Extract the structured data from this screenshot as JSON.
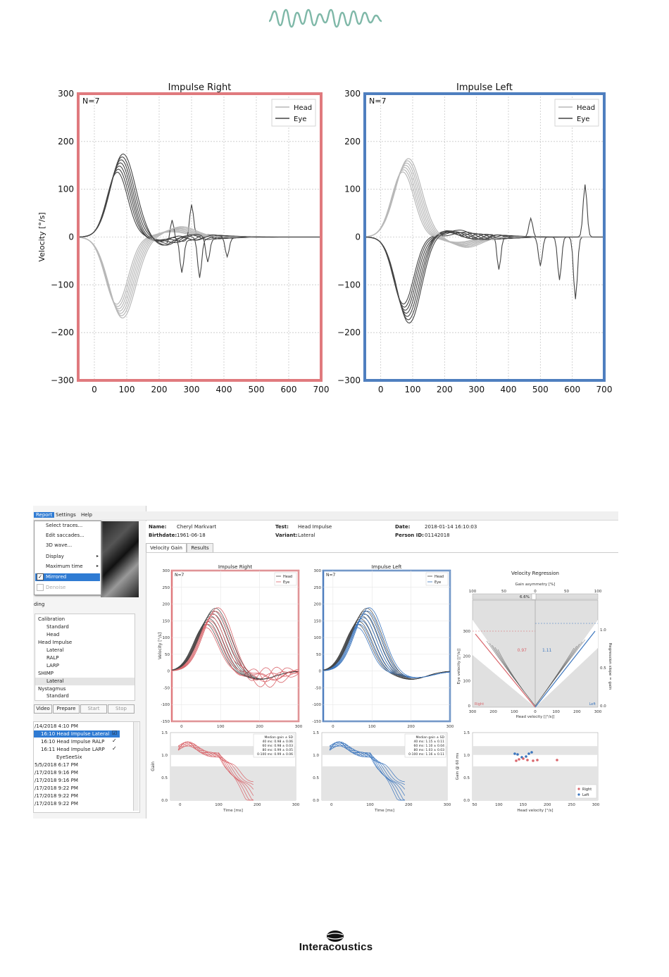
{
  "logo": {
    "icon": "sound-wave-logo",
    "color": "#7fb8a8"
  },
  "chart_data": [
    {
      "type": "line",
      "title": "Impulse Right",
      "annotation": "N=7",
      "ylabel": "Velocity [°/s]",
      "xlim": [
        -50,
        700
      ],
      "ylim": [
        -300,
        300
      ],
      "xticks": [
        0,
        100,
        200,
        300,
        400,
        500,
        600,
        700
      ],
      "yticks": [
        300,
        200,
        100,
        0,
        -100,
        -200,
        -300
      ],
      "ytick_labels": [
        "300",
        "200",
        "100",
        "0",
        "−100",
        "−200",
        "−300"
      ],
      "grid": true,
      "legend_position": "top-right",
      "series": [
        {
          "name": "Head",
          "color": "#b8b8b8"
        },
        {
          "name": "Eye",
          "color": "#444444"
        }
      ],
      "head_peak": -160,
      "eye_peak": 160,
      "frame_color": "#e07a7e"
    },
    {
      "type": "line",
      "title": "Impulse Left",
      "annotation": "N=7",
      "xlim": [
        -50,
        700
      ],
      "ylim": [
        -300,
        300
      ],
      "xticks": [
        0,
        100,
        200,
        300,
        400,
        500,
        600,
        700
      ],
      "yticks": [
        300,
        200,
        100,
        0,
        -100,
        -200,
        -300
      ],
      "ytick_labels": [
        "300",
        "200",
        "100",
        "0",
        "−100",
        "−200",
        "−300"
      ],
      "grid": true,
      "legend_position": "top-right",
      "series": [
        {
          "name": "Head",
          "color": "#b8b8b8"
        },
        {
          "name": "Eye",
          "color": "#444444"
        }
      ],
      "head_peak": 155,
      "eye_peak": -165,
      "frame_color": "#4f7fbf"
    }
  ],
  "screenshot": {
    "menu": {
      "report": "Report",
      "settings": "Settings",
      "help": "Help"
    },
    "dropdown": [
      "Select traces...",
      "Edit saccades...",
      "3D wave...",
      "Display",
      "Maximum time",
      "Mirrored",
      "Denoise"
    ],
    "section_label": "ding",
    "tree": [
      "Calibration",
      "Standard",
      "Head",
      "Head Impulse",
      "Lateral",
      "RALP",
      "LARP",
      "SHIMP",
      "Lateral",
      "Nystagmus",
      "Standard"
    ],
    "buttons": [
      "Video",
      "Prepare",
      "Start",
      "Stop"
    ],
    "sessions": [
      "/14/2018 4:10 PM",
      "16:10 Head Impulse Lateral",
      "16:10 Head Impulse RALP",
      "16:11 Head Impulse LARP",
      "EyeSeeSix",
      "5/5/2018 6:17 PM",
      "/17/2018 9:16 PM",
      "/17/2018 9:16 PM",
      "/17/2018 9:22 PM",
      "/17/2018 9:22 PM",
      "/17/2018 9:22 PM"
    ],
    "header": {
      "name_label": "Name:",
      "name": "Cheryl Markvart",
      "birth_label": "Birthdate:",
      "birth": "1961-06-18",
      "test_label": "Test:",
      "test": "Head Impulse",
      "variant_label": "Variant:",
      "variant": "Lateral",
      "date_label": "Date:",
      "date": "2018-01-14 16:10:03",
      "pid_label": "Person ID:",
      "pid": "01142018"
    },
    "tabs": [
      "Velocity Gain",
      "Results"
    ],
    "mini_right": {
      "title": "Impulse Right",
      "n": "N=7",
      "legend": [
        "Head",
        "Eye"
      ],
      "ylabel": "Velocity [°/s]",
      "yticks": [
        "300",
        "250",
        "200",
        "150",
        "100",
        "50",
        "0",
        "-50",
        "-100",
        "-150"
      ],
      "xticks": [
        "0",
        "100",
        "200",
        "300"
      ]
    },
    "mini_left": {
      "title": "Impulse Left",
      "n": "N=7",
      "legend": [
        "Head",
        "Eye"
      ],
      "yticks": [
        "300",
        "250",
        "200",
        "150",
        "100",
        "50",
        "0",
        "-50",
        "-100",
        "-150"
      ],
      "xticks": [
        "0",
        "100",
        "200",
        "300"
      ]
    },
    "regression": {
      "title": "Velocity Regression",
      "asym_label": "Gain asymmetry [%]",
      "asym_value": "6.6%",
      "top_ticks": [
        "100",
        "50",
        "0",
        "50",
        "100"
      ],
      "left_ticks": [
        "300",
        "200",
        "100",
        "0"
      ],
      "right_ticks": [
        "1.0",
        "0.5",
        "0.0"
      ],
      "bottom_ticks": [
        "300",
        "200",
        "100",
        "0",
        "100",
        "200",
        "300"
      ],
      "xlabel": "Head velocity [|°/s|]",
      "ylabel": "Eye velocity [|°/s|]",
      "rlabel": "Regression slope = gain",
      "gain_right": "0.97",
      "gain_left": "1.11",
      "right_label": "Right",
      "left_label": "Left"
    },
    "gain_right": {
      "ylabel": "Gain",
      "yticks": [
        "1.5",
        "1.0",
        "0.5",
        "0.0"
      ],
      "xticks": [
        "0",
        "100",
        "200",
        "300"
      ],
      "xlabel": "Time [ms]",
      "legend": [
        "Median gain ± SD",
        "40 ms: 0.98 ± 0.06",
        "60 ms: 0.98 ± 0.03",
        "80 ms: 0.99 ± 0.05",
        "0-100 ms: 0.99 ± 0.06"
      ]
    },
    "gain_left": {
      "yticks": [
        "1.5",
        "1.0",
        "0.5",
        "0.0"
      ],
      "xticks": [
        "0",
        "100",
        "200",
        "300"
      ],
      "xlabel": "Time [ms]",
      "legend": [
        "Median gain ± SD",
        "40 ms: 1.15 ± 0.11",
        "60 ms: 1.10 ± 0.04",
        "80 ms: 1.03 ± 0.03",
        "0-100 ms: 1.16 ± 0.11"
      ]
    },
    "gain_scatter": {
      "ylabel": "Gain @ 60 ms",
      "yticks": [
        "1.5",
        "1.0",
        "0.5",
        "0.0"
      ],
      "xticks": [
        "50",
        "100",
        "150",
        "200",
        "250",
        "300"
      ],
      "xlabel": "Head velocity [°/s]",
      "legend": [
        "Right",
        "Left"
      ]
    }
  },
  "footer": {
    "brand": "Interacoustics",
    "icon": "interacoustics-globe-icon"
  }
}
